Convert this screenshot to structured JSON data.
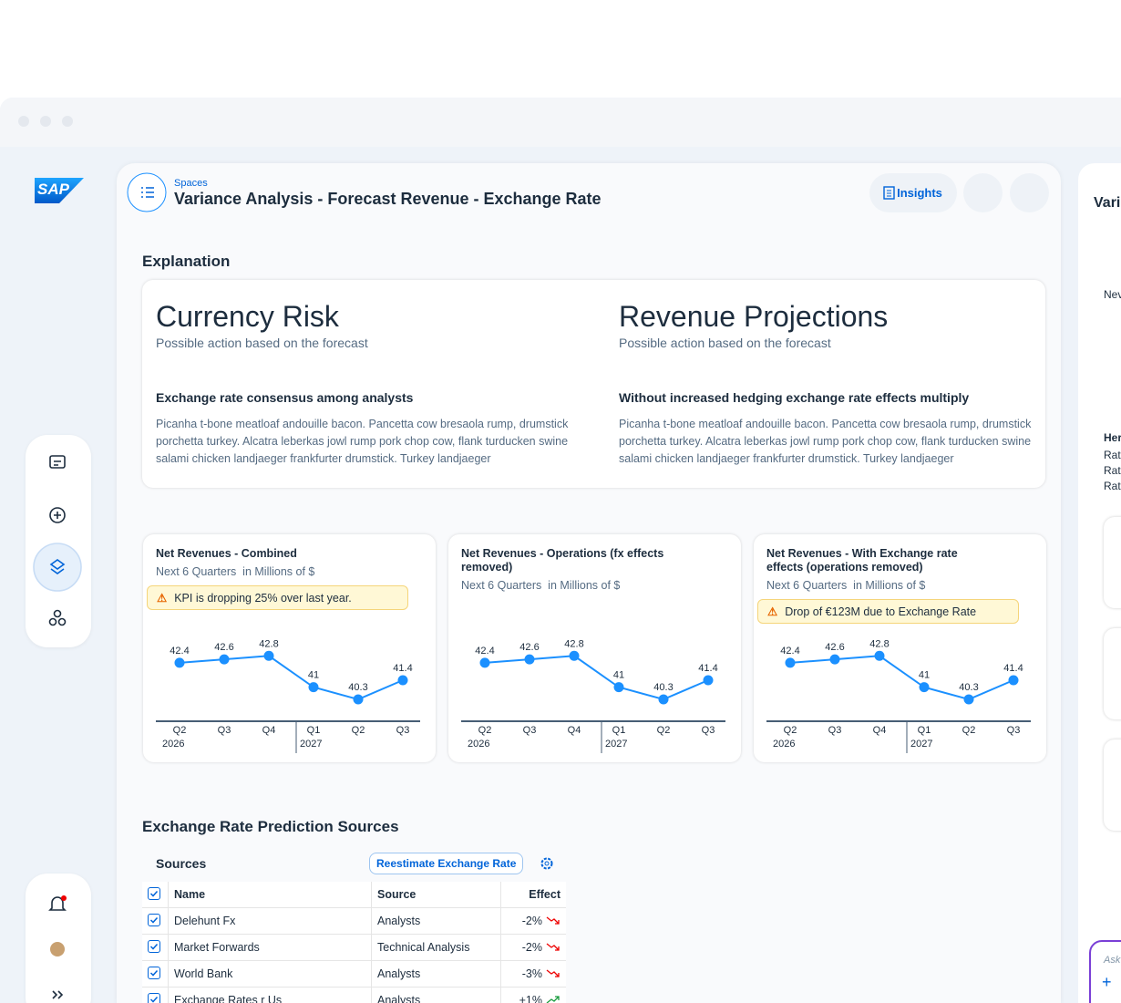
{
  "sidebar": {
    "logo": "SAP"
  },
  "header": {
    "breadcrumb": "Spaces",
    "title": "Variance Analysis - Forecast Revenue - Exchange Rate",
    "insights_button": "Insights"
  },
  "explanation": {
    "heading": "Explanation",
    "cards": [
      {
        "title": "Currency Risk",
        "subtitle": "Possible action based on the forecast",
        "heading": "Exchange rate consensus among analysts",
        "body": "Picanha t-bone meatloaf andouille bacon. Pancetta cow bresaola rump, drumstick porchetta turkey. Alcatra leberkas jowl rump pork chop cow, flank turducken swine salami chicken landjaeger frankfurter drumstick. Turkey landjaeger"
      },
      {
        "title": "Revenue Projections",
        "subtitle": "Possible action based on the forecast",
        "heading": "Without increased hedging exchange rate effects multiply",
        "body": "Picanha t-bone meatloaf andouille bacon. Pancetta cow bresaola rump, drumstick porchetta turkey. Alcatra leberkas jowl rump pork chop cow, flank turducken swine salami chicken landjaeger frankfurter drumstick. Turkey landjaeger"
      }
    ]
  },
  "chart_data": [
    {
      "type": "line",
      "title": "Net Revenues - Combined",
      "subtitle": "Next 6 Quarters  in Millions of $",
      "alert": "KPI is dropping 25% over last year.",
      "categories": [
        "Q2",
        "Q3",
        "Q4",
        "Q1",
        "Q2",
        "Q3",
        null
      ],
      "category_years": [
        "2026",
        null,
        null,
        "2027",
        null,
        null,
        null
      ],
      "values": [
        42.4,
        42.6,
        42.8,
        41,
        40.3,
        41.4,
        null
      ],
      "color": "#1b90ff",
      "ylim": [
        39.2,
        43.6
      ]
    },
    {
      "type": "line",
      "title": "Net Revenues - Operations (fx effects removed)",
      "subtitle": "Next 6 Quarters  in Millions of $",
      "categories": [
        "Q2",
        "Q3",
        "Q4",
        "Q1",
        "Q2",
        "Q3",
        null
      ],
      "category_years": [
        "2026",
        null,
        null,
        "2027",
        null,
        null,
        null
      ],
      "values": [
        42.4,
        42.6,
        42.8,
        41,
        40.3,
        41.4,
        null
      ],
      "color": "#1b90ff",
      "ylim": [
        39.2,
        43.6
      ]
    },
    {
      "type": "line",
      "title": "Net Revenues - With Exchange rate effects (operations removed)",
      "subtitle": "Next 6 Quarters  in Millions of $",
      "alert": "Drop of €123M due to Exchange Rate",
      "categories": [
        "Q2",
        "Q3",
        "Q4",
        "Q1",
        "Q2",
        "Q3",
        null
      ],
      "category_years": [
        "2026",
        null,
        null,
        "2027",
        null,
        null,
        null
      ],
      "values": [
        42.4,
        42.6,
        42.8,
        41,
        40.3,
        41.4,
        null
      ],
      "color": "#1b90ff",
      "ylim": [
        39.2,
        43.6
      ]
    }
  ],
  "sources": {
    "heading": "Exchange Rate Prediction Sources",
    "toolbar_title": "Sources",
    "reestimate_button": "Reestimate Exchange Rate",
    "table": {
      "columns": [
        "Name",
        "Source",
        "Effect"
      ],
      "rows": [
        [
          "Delehunt Fx",
          "Analysts",
          "-2%"
        ],
        [
          "Market Forwards",
          "Technical Analysis",
          "-2%"
        ],
        [
          "World Bank",
          "Analysts",
          "-3%"
        ],
        [
          "Exchange Rates r Us",
          "Analysts",
          "+1%"
        ]
      ]
    }
  },
  "side_panel": {
    "title": "Vari",
    "line_1": "Nev",
    "heading": "Her",
    "lines": [
      "Rat",
      "Rat",
      "Rat"
    ],
    "input_placeholder": "Ask"
  }
}
